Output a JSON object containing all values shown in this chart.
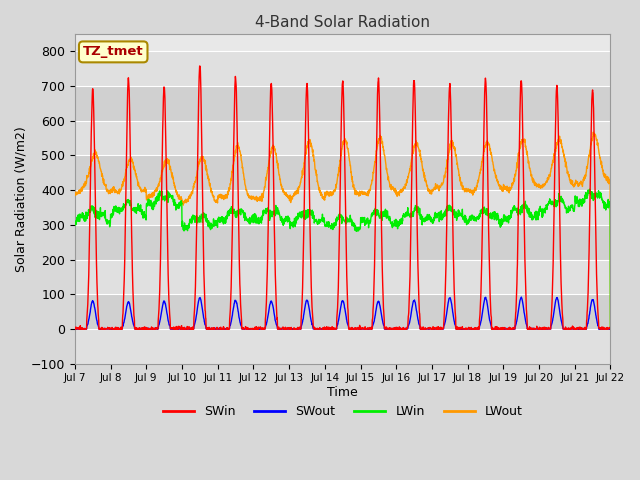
{
  "title": "4-Band Solar Radiation",
  "xlabel": "Time",
  "ylabel": "Solar Radiation (W/m2)",
  "ylim": [
    -100,
    850
  ],
  "yticks": [
    -100,
    0,
    100,
    200,
    300,
    400,
    500,
    600,
    700,
    800
  ],
  "annotation": "TZ_tmet",
  "annotation_color": "#aa0000",
  "annotation_bg": "#ffffcc",
  "annotation_border": "#aa8800",
  "colors": {
    "SWin": "#ff0000",
    "SWout": "#0000ff",
    "LWin": "#00ee00",
    "LWout": "#ff9900"
  },
  "start_day": 7,
  "end_day": 22,
  "n_days": 15,
  "bg_color": "#d8d8d8",
  "plot_bg": "#e8e8e8",
  "band_colors": [
    "#e0e0e0",
    "#d0d0d0"
  ],
  "grid_color": "#ffffff",
  "linewidth": 1.0,
  "SWin_peaks": [
    690,
    720,
    700,
    760,
    727,
    710,
    705,
    715,
    722,
    720,
    706,
    720,
    718,
    700,
    690
  ],
  "SWout_peaks": [
    80,
    78,
    80,
    90,
    82,
    80,
    83,
    82,
    80,
    82,
    90,
    90,
    90,
    90,
    85
  ],
  "LWin_base": [
    310,
    330,
    355,
    295,
    310,
    310,
    305,
    290,
    305,
    310,
    315,
    310,
    320,
    340,
    360
  ],
  "LWout_base": [
    395,
    395,
    380,
    370,
    375,
    375,
    380,
    385,
    390,
    395,
    400,
    400,
    405,
    415,
    420
  ],
  "LWout_peak": [
    510,
    485,
    490,
    500,
    520,
    525,
    545,
    540,
    550,
    540,
    530,
    540,
    545,
    550,
    560
  ]
}
